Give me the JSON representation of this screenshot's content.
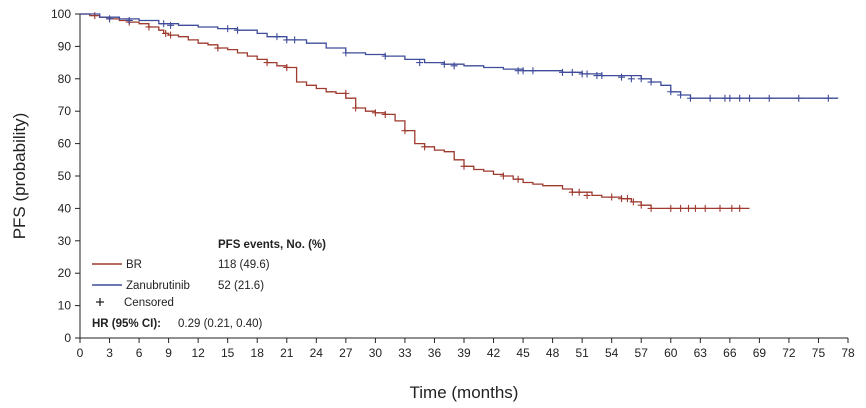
{
  "chart_data": {
    "type": "line",
    "subtype": "kaplan-meier",
    "xlabel": "Time (months)",
    "ylabel": "PFS (probability)",
    "xlim": [
      0,
      78
    ],
    "ylim": [
      0,
      100
    ],
    "xticks": [
      0,
      3,
      6,
      9,
      12,
      15,
      18,
      21,
      24,
      27,
      30,
      33,
      36,
      39,
      42,
      45,
      48,
      51,
      54,
      57,
      60,
      63,
      66,
      69,
      72,
      75,
      78
    ],
    "yticks": [
      0,
      10,
      20,
      30,
      40,
      50,
      60,
      70,
      80,
      90,
      100
    ],
    "series": [
      {
        "name": "BR",
        "color": "#9e3a2e",
        "events": "118 (49.6)",
        "steps": [
          [
            0,
            100
          ],
          [
            1,
            99.5
          ],
          [
            2,
            99
          ],
          [
            3,
            98.5
          ],
          [
            4,
            98
          ],
          [
            5,
            97.5
          ],
          [
            6,
            97
          ],
          [
            7,
            96
          ],
          [
            8,
            95
          ],
          [
            8.5,
            94
          ],
          [
            9,
            93.5
          ],
          [
            10,
            93
          ],
          [
            11,
            92
          ],
          [
            12,
            91
          ],
          [
            13,
            90.5
          ],
          [
            14,
            89.5
          ],
          [
            15,
            89
          ],
          [
            16,
            88
          ],
          [
            17,
            87
          ],
          [
            18,
            86
          ],
          [
            19,
            85
          ],
          [
            20,
            84
          ],
          [
            21,
            83.5
          ],
          [
            22,
            79
          ],
          [
            23,
            78
          ],
          [
            24,
            77
          ],
          [
            25,
            76
          ],
          [
            26,
            75.5
          ],
          [
            27,
            74
          ],
          [
            28,
            71
          ],
          [
            29,
            70
          ],
          [
            30,
            69.5
          ],
          [
            31,
            69
          ],
          [
            32,
            67
          ],
          [
            33,
            64
          ],
          [
            34,
            60
          ],
          [
            35,
            59
          ],
          [
            36,
            58
          ],
          [
            37,
            57.5
          ],
          [
            38,
            55
          ],
          [
            39,
            53
          ],
          [
            40,
            52
          ],
          [
            41,
            51.5
          ],
          [
            42,
            50.5
          ],
          [
            43,
            50
          ],
          [
            44,
            49
          ],
          [
            45,
            48
          ],
          [
            46,
            47.5
          ],
          [
            47,
            47
          ],
          [
            49,
            46
          ],
          [
            50,
            45
          ],
          [
            52,
            44
          ],
          [
            53,
            43.5
          ],
          [
            55,
            43
          ],
          [
            56,
            42
          ],
          [
            57,
            41
          ],
          [
            58,
            40
          ],
          [
            68,
            40
          ]
        ],
        "censored": [
          [
            1.5,
            99.5
          ],
          [
            3,
            98.5
          ],
          [
            5,
            97.5
          ],
          [
            7,
            96
          ],
          [
            8.7,
            94
          ],
          [
            9.2,
            93.5
          ],
          [
            14,
            89.5
          ],
          [
            19,
            85
          ],
          [
            21,
            83.5
          ],
          [
            27,
            75.5
          ],
          [
            28,
            71
          ],
          [
            30,
            69.5
          ],
          [
            31,
            69
          ],
          [
            33,
            64
          ],
          [
            35,
            59
          ],
          [
            39,
            53
          ],
          [
            43,
            50
          ],
          [
            44.5,
            49
          ],
          [
            50,
            45
          ],
          [
            50.7,
            45
          ],
          [
            51.5,
            44
          ],
          [
            54,
            43.5
          ],
          [
            55,
            43
          ],
          [
            55.6,
            43
          ],
          [
            56.2,
            42
          ],
          [
            57,
            41
          ],
          [
            58,
            40
          ],
          [
            60,
            40
          ],
          [
            61,
            40
          ],
          [
            61.8,
            40
          ],
          [
            62.5,
            40
          ],
          [
            63.5,
            40
          ],
          [
            65,
            40
          ],
          [
            66.2,
            40
          ],
          [
            67,
            40
          ]
        ]
      },
      {
        "name": "Zanubrutinib",
        "color": "#3f4c9a",
        "events": "52 (21.6)",
        "steps": [
          [
            0,
            100
          ],
          [
            2,
            99
          ],
          [
            4,
            98.5
          ],
          [
            6,
            98
          ],
          [
            8,
            97
          ],
          [
            10,
            96.5
          ],
          [
            12,
            96
          ],
          [
            14,
            95.5
          ],
          [
            16,
            95
          ],
          [
            18,
            94
          ],
          [
            19,
            93
          ],
          [
            21,
            92
          ],
          [
            23,
            91
          ],
          [
            25,
            89.5
          ],
          [
            27,
            88
          ],
          [
            29,
            87.5
          ],
          [
            31,
            87
          ],
          [
            33,
            86
          ],
          [
            35,
            85
          ],
          [
            37,
            84.5
          ],
          [
            39,
            84
          ],
          [
            41,
            83.5
          ],
          [
            43,
            83
          ],
          [
            45,
            82.5
          ],
          [
            49,
            82
          ],
          [
            51,
            81.5
          ],
          [
            53,
            81
          ],
          [
            57,
            80
          ],
          [
            58,
            79
          ],
          [
            59,
            78
          ],
          [
            60,
            76
          ],
          [
            61,
            75
          ],
          [
            62,
            74
          ],
          [
            77,
            74
          ]
        ],
        "censored": [
          [
            3,
            98.5
          ],
          [
            5,
            98
          ],
          [
            8.5,
            97
          ],
          [
            9.2,
            96.5
          ],
          [
            15,
            95.5
          ],
          [
            16,
            95
          ],
          [
            20,
            93
          ],
          [
            21,
            92
          ],
          [
            21.8,
            92
          ],
          [
            27,
            88
          ],
          [
            31,
            87
          ],
          [
            34.5,
            85
          ],
          [
            37,
            84.5
          ],
          [
            38,
            84
          ],
          [
            44.5,
            82.5
          ],
          [
            45,
            82.5
          ],
          [
            46,
            82.5
          ],
          [
            49,
            82
          ],
          [
            50,
            82
          ],
          [
            51,
            81.5
          ],
          [
            51.5,
            81.5
          ],
          [
            52.5,
            81
          ],
          [
            53,
            81
          ],
          [
            55,
            80.5
          ],
          [
            56,
            80
          ],
          [
            57,
            80
          ],
          [
            58,
            79
          ],
          [
            60,
            76
          ],
          [
            61,
            75
          ],
          [
            62,
            74
          ],
          [
            64,
            74
          ],
          [
            65.5,
            74
          ],
          [
            66,
            74
          ],
          [
            67,
            74
          ],
          [
            68,
            74
          ],
          [
            70,
            74
          ],
          [
            73,
            74
          ],
          [
            76,
            74
          ]
        ]
      }
    ],
    "legend": {
      "header": "PFS events, No. (%)",
      "censored_label": "Censored",
      "hr_label": "HR (95% CI):",
      "hr_value": "0.29 (0.21, 0.40)"
    }
  }
}
